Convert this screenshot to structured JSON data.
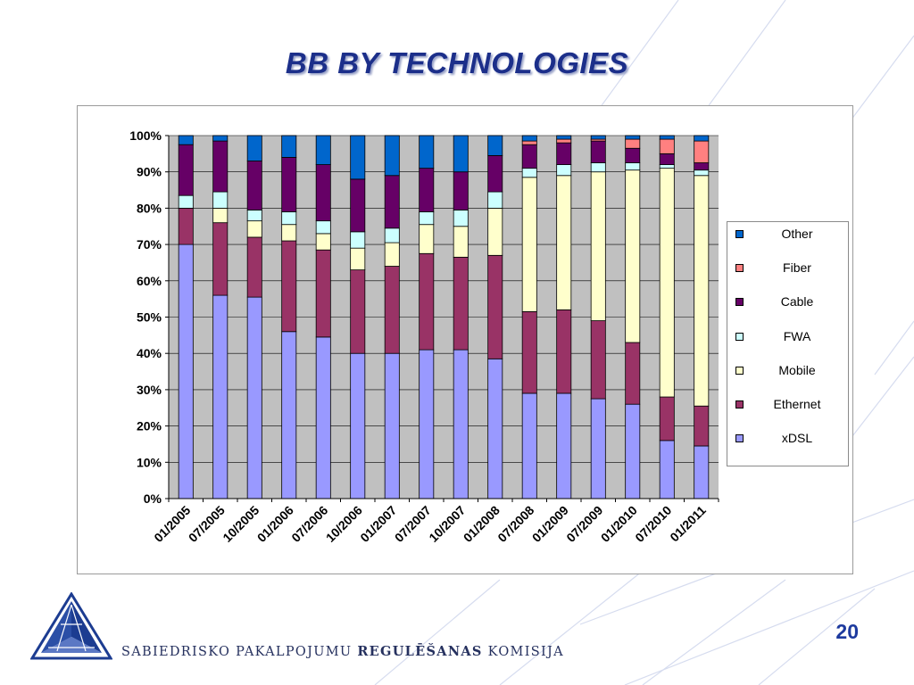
{
  "slide": {
    "title": "BB BY TECHNOLOGIES",
    "footer": {
      "prefix": "SABIEDRISKO PAKALPOJUMU",
      "strong": "REGULĒŠANAS",
      "suffix": "KOMISIJA"
    },
    "page_number": "20"
  },
  "chart_data": {
    "type": "bar",
    "stacked": true,
    "percent_stacked": true,
    "categories": [
      "01/2005",
      "07/2005",
      "10/2005",
      "01/2006",
      "07/2006",
      "10/2006",
      "01/2007",
      "07/2007",
      "10/2007",
      "01/2008",
      "07/2008",
      "01/2009",
      "07/2009",
      "01/2010",
      "07/2010",
      "01/2011"
    ],
    "ylim": [
      0,
      100
    ],
    "yticks": [
      "0%",
      "10%",
      "20%",
      "30%",
      "40%",
      "50%",
      "60%",
      "70%",
      "80%",
      "90%",
      "100%"
    ],
    "grid": true,
    "legend_position": "right",
    "series": [
      {
        "name": "xDSL",
        "color": "#9999ff",
        "values": [
          70,
          56,
          55.5,
          46,
          44.5,
          40,
          40,
          41,
          41,
          38.5,
          29,
          29,
          27.5,
          26,
          16,
          14.5
        ]
      },
      {
        "name": "Ethernet",
        "color": "#993366",
        "values": [
          10,
          20,
          16.5,
          25,
          24,
          23,
          24,
          26.5,
          25.5,
          28.5,
          22.5,
          23,
          21.5,
          17,
          12,
          11
        ]
      },
      {
        "name": "Mobile",
        "color": "#ffffcc",
        "values": [
          0,
          4,
          4.5,
          4.5,
          4.5,
          6,
          6.5,
          8,
          8.5,
          13,
          37,
          37,
          41,
          47.5,
          63,
          63.5
        ]
      },
      {
        "name": "FWA",
        "color": "#ccffff",
        "values": [
          3.5,
          4.5,
          3,
          3.5,
          3.5,
          4.5,
          4,
          3.5,
          4.5,
          4.5,
          2.5,
          3,
          2.5,
          2,
          1,
          1.5
        ]
      },
      {
        "name": "Cable",
        "color": "#660066",
        "values": [
          14,
          14,
          13.5,
          15,
          15.5,
          14.5,
          14.5,
          12,
          10.5,
          10,
          6.5,
          6,
          6,
          4,
          3,
          2
        ]
      },
      {
        "name": "Fiber",
        "color": "#ff8080",
        "values": [
          0,
          0,
          0,
          0,
          0,
          0,
          0,
          0,
          0,
          0,
          1,
          1,
          0.5,
          2.5,
          4,
          6
        ]
      },
      {
        "name": "Other",
        "color": "#0066cc",
        "values": [
          2.5,
          1.5,
          7,
          6,
          8,
          12,
          11,
          9,
          10,
          5.5,
          1.5,
          1,
          1,
          1,
          1,
          1.5
        ]
      }
    ],
    "legend_order": [
      "Other",
      "Fiber",
      "Cable",
      "FWA",
      "Mobile",
      "Ethernet",
      "xDSL"
    ]
  }
}
